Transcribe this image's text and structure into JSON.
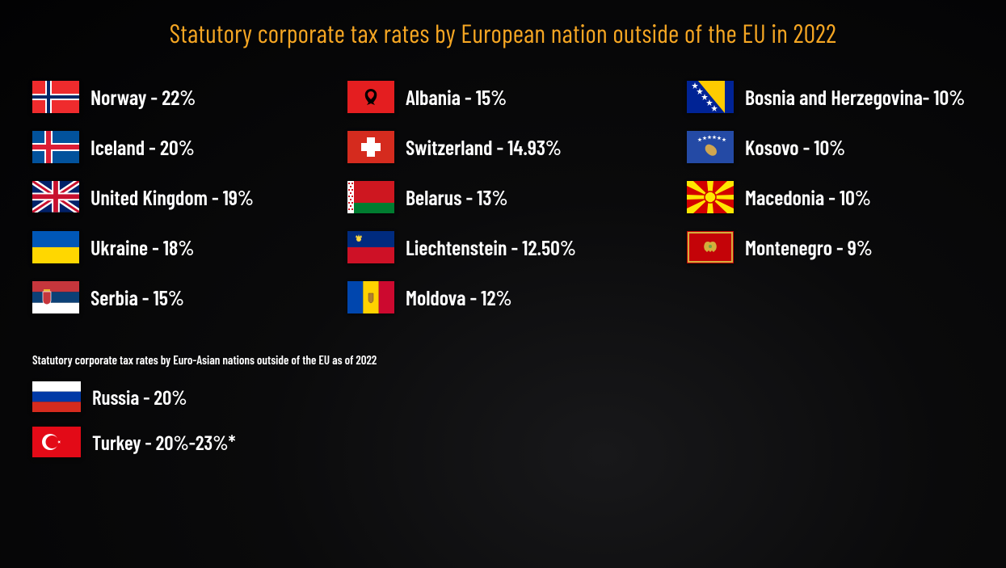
{
  "title": "Statutory corporate tax rates by European nation outside of the EU in  2022",
  "title_color": "#f5a623",
  "title_fontsize": 32,
  "text_color": "#ffffff",
  "background": "#020203",
  "label_fontsize": 26,
  "flag_width": 58,
  "flag_height": 40,
  "columns": [
    [
      {
        "country": "Norway",
        "rate": "22%",
        "flag": "norway"
      },
      {
        "country": "Iceland",
        "rate": "20%",
        "flag": "iceland"
      },
      {
        "country": "United Kingdom",
        "rate": "19%",
        "flag": "uk"
      },
      {
        "country": "Ukraine",
        "rate": "18%",
        "flag": "ukraine"
      },
      {
        "country": "Serbia",
        "rate": "15%",
        "flag": "serbia"
      }
    ],
    [
      {
        "country": "Albania",
        "rate": "15%",
        "flag": "albania"
      },
      {
        "country": "Switzerland",
        "rate": "14.93%",
        "flag": "switzerland"
      },
      {
        "country": "Belarus",
        "rate": "13%",
        "flag": "belarus"
      },
      {
        "country": "Liechtenstein",
        "rate": "12.50%",
        "flag": "liechtenstein"
      },
      {
        "country": "Moldova",
        "rate": "12%",
        "flag": "moldova"
      }
    ],
    [
      {
        "country": "Bosnia and Herzegovina",
        "rate": "10%",
        "sep": "- ",
        "flag": "bosnia"
      },
      {
        "country": "Kosovo",
        "rate": "10%",
        "flag": "kosovo"
      },
      {
        "country": "Macedonia",
        "rate": "10%",
        "flag": "macedonia"
      },
      {
        "country": "Montenegro",
        "rate": "9%",
        "flag": "montenegro"
      }
    ]
  ],
  "subtitle": "Statutory corporate tax rates by Euro-Asian nations outside of the EU as of 2022",
  "subtitle_fontsize": 15,
  "euroasian": [
    {
      "country": "Russia",
      "rate": "20%",
      "flag": "russia"
    },
    {
      "country": "Turkey",
      "rate": "20%-23%*",
      "flag": "turkey"
    }
  ],
  "flags": {
    "norway": "<svg viewBox='0 0 58 40'><rect width='58' height='40' fill='#ef2b2d'/><rect x='16' width='8' height='40' fill='#fff'/><rect y='16' width='58' height='8' fill='#fff'/><rect x='18' width='4' height='40' fill='#002868'/><rect y='18' width='58' height='4' fill='#002868'/></svg>",
    "iceland": "<svg viewBox='0 0 58 40'><rect width='58' height='40' fill='#02529c'/><rect x='15' width='10' height='40' fill='#fff'/><rect y='15' width='58' height='10' fill='#fff'/><rect x='17' width='6' height='40' fill='#dc1e35'/><rect y='17' width='58' height='6' fill='#dc1e35'/></svg>",
    "uk": "<svg viewBox='0 0 60 40'><rect width='60' height='40' fill='#012169'/><path d='M0,0 L60,40 M60,0 L0,40' stroke='#fff' stroke-width='8'/><path d='M0,0 L60,40 M60,0 L0,40' stroke='#c8102e' stroke-width='3'/><rect x='25' width='10' height='40' fill='#fff'/><rect y='15' width='60' height='10' fill='#fff'/><rect x='27' width='6' height='40' fill='#c8102e'/><rect y='17' width='60' height='6' fill='#c8102e'/></svg>",
    "ukraine": "<svg viewBox='0 0 58 40'><rect width='58' height='20' fill='#0057b7'/><rect y='20' width='58' height='20' fill='#ffd700'/></svg>",
    "serbia": "<svg viewBox='0 0 58 40'><rect width='58' height='13.3' fill='#c6363c'/><rect y='13.3' width='58' height='13.4' fill='#0c4076'/><rect y='26.7' width='58' height='13.3' fill='#fff'/><g transform='translate(18,20)'><path d='M-5,-7 L5,-7 L5,4 Q5,8 0,9 Q-5,8 -5,4 Z' fill='#c6363c' stroke='#fff' stroke-width='0.7'/><rect x='-4' y='-10' width='8' height='2.5' fill='#edb92e'/></g></svg>",
    "albania": "<svg viewBox='0 0 58 40'><rect width='58' height='40' fill='#e41e20'/><path d='M29,10 Q24,10 22,15 Q21,20 24,24 L26,27 L24,30 L29,28 L34,30 L32,27 L34,24 Q37,20 36,15 Q34,10 29,10 M29,13 Q32,13 33,16 Q33,19 31,21 L29,23 L27,21 Q25,19 25,16 Q26,13 29,13' fill='#000'/></svg>",
    "switzerland": "<svg viewBox='0 0 58 40'><rect width='58' height='40' fill='#d52b1e'/><rect x='24' y='8' width='10' height='24' fill='#fff'/><rect x='17' y='15' width='24' height='10' fill='#fff'/></svg>",
    "belarus": "<svg viewBox='0 0 58 40'><rect width='58' height='27' fill='#ce1720'/><rect y='27' width='58' height='13' fill='#007c30'/><rect width='8' height='40' fill='#fff'/><g fill='#ce1720'><rect x='1' y='2' width='2' height='2'/><rect x='5' y='2' width='2' height='2'/><rect x='3' y='6' width='2' height='2'/><rect x='1' y='10' width='2' height='2'/><rect x='5' y='10' width='2' height='2'/><rect x='3' y='14' width='2' height='2'/><rect x='1' y='18' width='2' height='2'/><rect x='5' y='18' width='2' height='2'/><rect x='3' y='22' width='2' height='2'/><rect x='1' y='26' width='2' height='2'/><rect x='5' y='26' width='2' height='2'/><rect x='3' y='30' width='2' height='2'/><rect x='1' y='34' width='2' height='2'/><rect x='5' y='34' width='2' height='2'/></g></svg>",
    "liechtenstein": "<svg viewBox='0 0 58 40'><rect width='58' height='20' fill='#002b7f'/><rect y='20' width='58' height='20' fill='#ce1126'/><g transform='translate(14,10)' fill='#ffd83d'><circle r='3'/><path d='M-4,-2 L-3,-5 L-1,-3 L0,-6 L1,-3 L3,-5 L4,-2 Z'/></g></svg>",
    "moldova": "<svg viewBox='0 0 58 40'><rect width='19.3' height='40' fill='#0046ae'/><rect x='19.3' width='19.4' height='40' fill='#ffd200'/><rect x='38.7' width='19.3' height='40' fill='#cc092f'/><g transform='translate(29,20)'><path d='M-3,-5 L3,-5 L3,3 Q3,6 0,7 Q-3,6 -3,3 Z' fill='#b08030' stroke='#7a4a1a' stroke-width='0.5'/></g></svg>",
    "bosnia": "<svg viewBox='0 0 58 40'><rect width='58' height='40' fill='#002395'/><path d='M14,0 L47,0 L47,40 Z' fill='#fecb00'/><g fill='#fff'><polygon points='10,2 11,5 14,5 11.5,7 12.5,10 10,8 7.5,10 8.5,7 6,5 9,5'/><polygon points='16,9 17,12 20,12 17.5,14 18.5,17 16,15 13.5,17 14.5,14 12,12 15,12'/><polygon points='22,16 23,19 26,19 23.5,21 24.5,24 22,22 19.5,24 20.5,21 18,19 21,19'/><polygon points='28,23 29,26 32,26 29.5,28 30.5,31 28,29 25.5,31 26.5,28 24,26 27,26'/><polygon points='34,30 35,33 38,33 35.5,35 36.5,38 34,36 31.5,38 32.5,35 30,33 33,33'/></g></svg>",
    "kosovo": "<svg viewBox='0 0 58 40'><rect width='58' height='40' fill='#244aa5'/><g fill='#fff'><polygon points='16,8 16.7,10 18.7,10 17,11.2 17.7,13.2 16,12 14.3,13.2 15,11.2 13.3,10 15.3,10'/><polygon points='22,6 22.7,8 24.7,8 23,9.2 23.7,11.2 22,10 20.3,11.2 21,9.2 19.3,8 21.3,8'/><polygon points='28,5 28.7,7 30.7,7 29,8.2 29.7,10.2 28,9 26.3,10.2 27,8.2 25.3,7 27.3,7'/><polygon points='34,5 34.7,7 36.7,7 35,8.2 35.7,10.2 34,9 32.3,10.2 33,8.2 31.3,7 33.3,7'/><polygon points='40,6 40.7,8 42.7,8 41,9.2 41.7,11.2 40,10 38.3,11.2 39,9.2 37.3,8 39.3,8'/><polygon points='46,8 46.7,10 48.7,10 47,11.2 47.7,13.2 46,12 44.3,13.2 45,11.2 43.3,10 45.3,10'/></g><path d='M24,18 Q22,20 23,24 Q25,28 29,30 Q33,32 36,29 Q38,26 36,22 Q33,18 29,17 Q26,16 24,18' fill='#d0a650'/></svg>",
    "macedonia": "<svg viewBox='0 0 58 40'><rect width='58' height='40' fill='#d20000'/><g fill='#ffe600'><circle cx='29' cy='20' r='6'/><path d='M0,0 L8,0 L29,20 L0,6 Z'/><path d='M58,0 L50,0 L29,20 L58,6 Z'/><path d='M0,40 L8,40 L29,20 L0,34 Z'/><path d='M58,40 L50,40 L29,20 L58,34 Z'/><path d='M25,0 L33,0 L31,20 L27,20 Z'/><path d='M25,40 L33,40 L31,20 L27,20 Z'/><path d='M0,17 L0,23 L29,22 L29,18 Z'/><path d='M58,17 L58,23 L29,22 L29,18 Z'/></g><circle cx='29' cy='20' r='7' fill='none' stroke='#d20000' stroke-width='1.5'/></svg>",
    "montenegro": "<svg viewBox='0 0 58 40'><rect width='58' height='40' fill='#c40308'/><rect x='2' y='2' width='54' height='36' fill='none' stroke='#d3ae3b' stroke-width='2'/><g transform='translate(29,20)' fill='#d3ae3b'><path d='M-6,-6 Q-9,-2 -7,3 L-4,6 L-2,4 L0,6 L2,4 L4,6 L7,3 Q9,-2 6,-6 Q3,-8 0,-6 Q-3,-8 -6,-6' /><circle cx='0' cy='-1' r='2' fill='#6da544'/></g></svg>",
    "russia": "<svg viewBox='0 0 60 38'><rect width='60' height='12.7' fill='#fff'/><rect y='12.7' width='60' height='12.6' fill='#0039a6'/><rect y='25.3' width='60' height='12.7' fill='#d52b1e'/></svg>",
    "turkey": "<svg viewBox='0 0 60 38'><rect width='60' height='38' fill='#e30a17'/><circle cx='22' cy='19' r='10' fill='#fff'/><circle cx='24.5' cy='19' r='8' fill='#e30a17'/><polygon points='31,19 35,17.5 32.5,21 32.5,17 35,20.5' fill='#fff'/></svg>"
  }
}
